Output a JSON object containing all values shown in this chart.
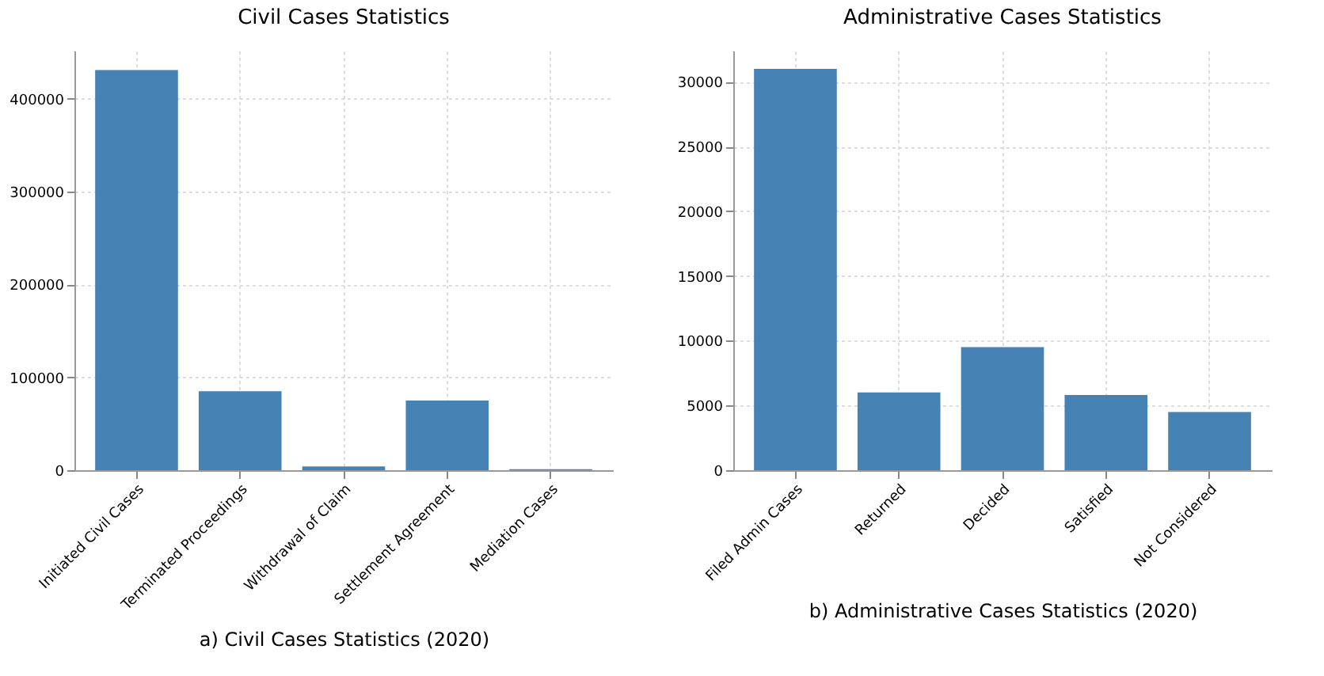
{
  "chart_data": [
    {
      "type": "bar",
      "title": "Civil Cases Statistics",
      "xlabel": "a) Civil Cases Statistics (2020)",
      "categories": [
        "Initiated Civil Cases",
        "Terminated Proceedings",
        "Withdrawal of Claim",
        "Settlement Agreement",
        "Mediation Cases"
      ],
      "values": [
        431000,
        85000,
        4000,
        75000,
        1000
      ],
      "color": "#4682b4",
      "ylim": [
        0,
        452000
      ],
      "yticks": [
        0,
        100000,
        200000,
        300000,
        400000
      ],
      "grid": true
    },
    {
      "type": "bar",
      "title": "Administrative Cases Statistics",
      "xlabel": "b) Administrative Cases Statistics (2020)",
      "categories": [
        "Filed Admin Cases",
        "Returned",
        "Decided",
        "Satisfied",
        "Not Considered"
      ],
      "values": [
        31000,
        6000,
        9500,
        5800,
        4500
      ],
      "color": "#4682b4",
      "ylim": [
        0,
        32400
      ],
      "yticks": [
        0,
        5000,
        10000,
        15000,
        20000,
        25000,
        30000
      ],
      "grid": true
    }
  ]
}
